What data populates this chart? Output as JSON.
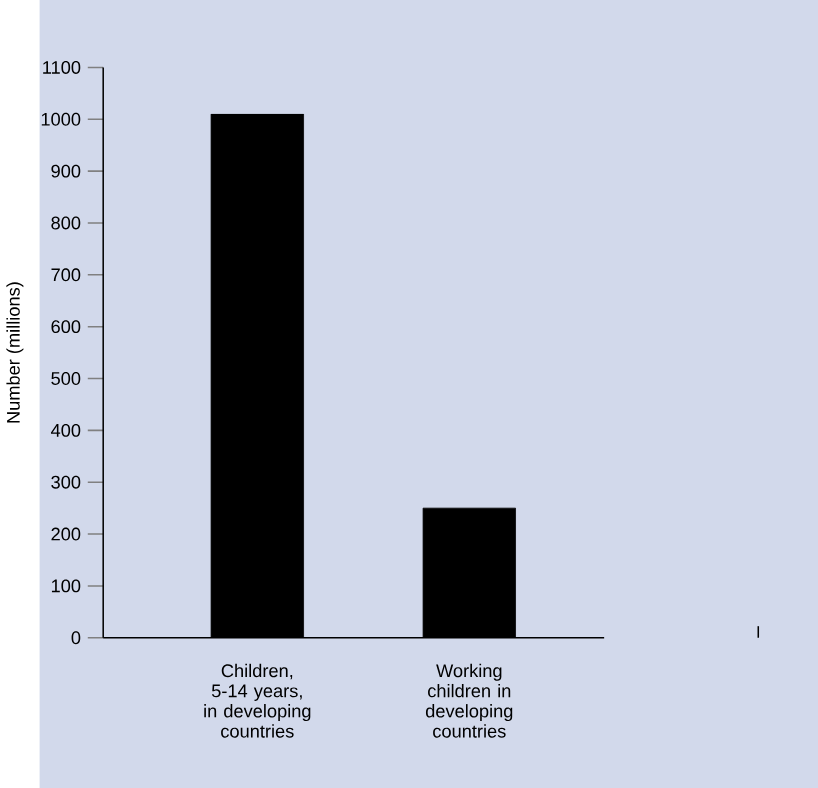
{
  "chart_data": {
    "type": "bar",
    "ylabel": "Number (millions)",
    "categories": [
      "Children, 5-14 years, in developing countries",
      "Working children in developing countries"
    ],
    "values": [
      1010,
      250
    ],
    "color": "#000000",
    "ylim": [
      0,
      1100
    ],
    "yticks": [
      0,
      100,
      200,
      300,
      400,
      500,
      600,
      700,
      800,
      900,
      1000,
      1100
    ],
    "grid": false
  }
}
